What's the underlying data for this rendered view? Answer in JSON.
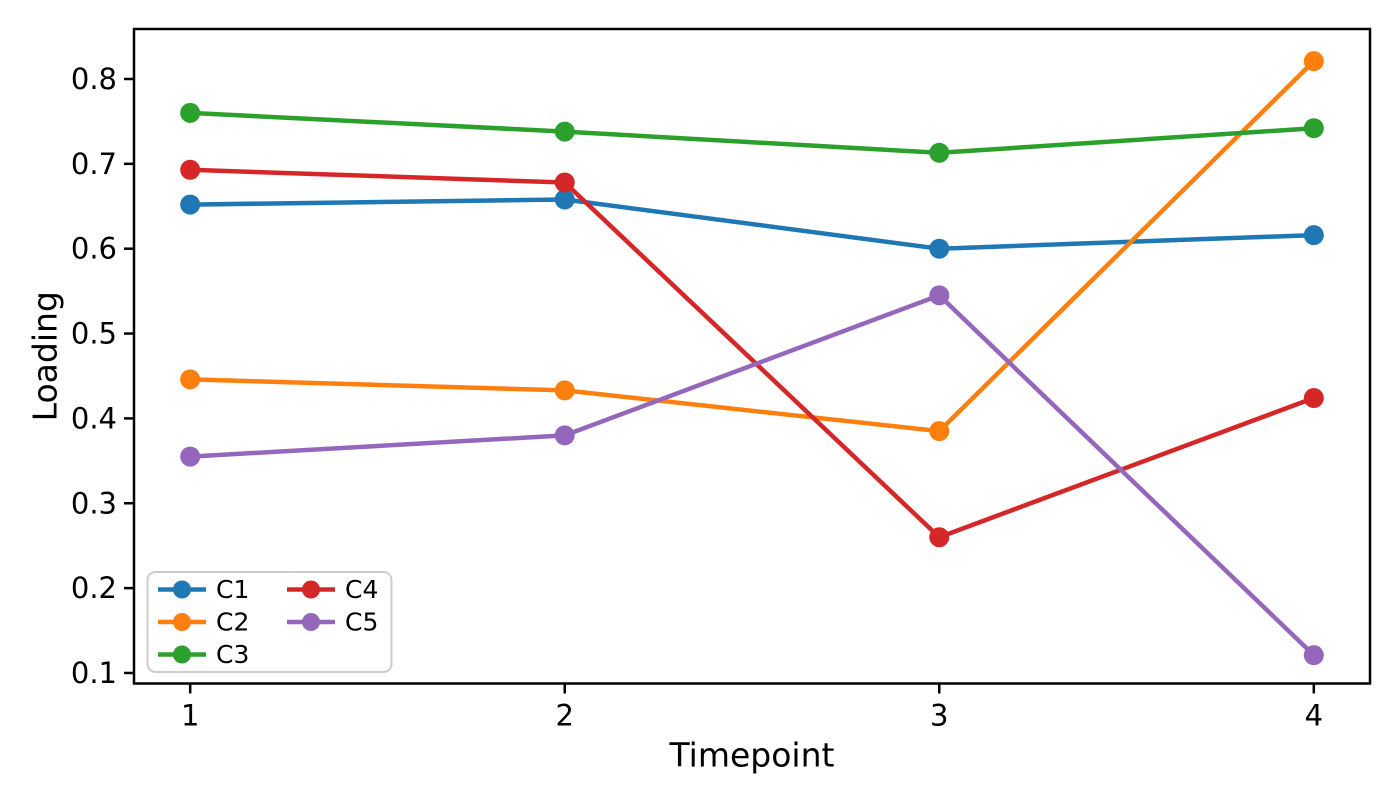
{
  "figure": {
    "background": "#ffffff",
    "spine_color": "#000000",
    "tick_color": "#000000",
    "text_color": "#000000"
  },
  "chart_data": {
    "type": "line",
    "title": "",
    "xlabel": "Timepoint",
    "ylabel": "Loading",
    "x": [
      1,
      2,
      3,
      4
    ],
    "series": [
      {
        "name": "C1",
        "color": "#1f77b4",
        "values": [
          0.652,
          0.658,
          0.6,
          0.616
        ]
      },
      {
        "name": "C2",
        "color": "#ff7f0e",
        "values": [
          0.446,
          0.433,
          0.385,
          0.821
        ]
      },
      {
        "name": "C3",
        "color": "#2ca02c",
        "values": [
          0.76,
          0.738,
          0.713,
          0.742
        ]
      },
      {
        "name": "C4",
        "color": "#d62728",
        "values": [
          0.693,
          0.678,
          0.26,
          0.424
        ]
      },
      {
        "name": "C5",
        "color": "#9467bd",
        "values": [
          0.355,
          0.38,
          0.545,
          0.121
        ]
      }
    ],
    "xticks": [
      1,
      2,
      3,
      4
    ],
    "yticks": [
      0.1,
      0.2,
      0.3,
      0.4,
      0.5,
      0.6,
      0.7,
      0.8
    ],
    "xlim": [
      0.85,
      4.15
    ],
    "ylim": [
      0.0876,
      0.8589
    ],
    "grid": false,
    "legend": {
      "position": "lower left",
      "columns": 2,
      "entries": [
        "C1",
        "C2",
        "C3",
        "C4",
        "C5"
      ],
      "border_color": "#cccccc",
      "background": "#ffffff"
    }
  }
}
